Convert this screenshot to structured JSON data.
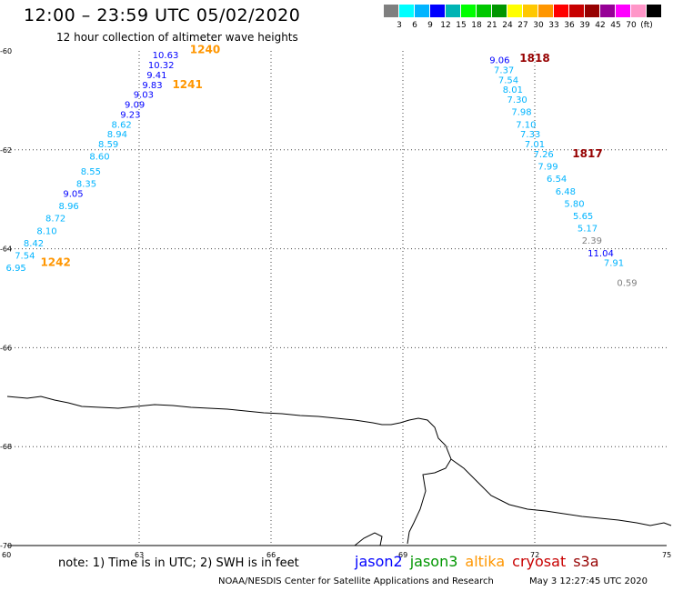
{
  "header": {
    "title": "12:00 – 23:59 UTC 05/02/2020",
    "subtitle": "12 hour collection of altimeter wave heights"
  },
  "scale": {
    "colors": [
      "#7f7f7f",
      "#00ffff",
      "#00b4ff",
      "#0000ff",
      "#00b4b4",
      "#00ff00",
      "#00c800",
      "#009600",
      "#ffff00",
      "#ffc800",
      "#ff9600",
      "#ff0000",
      "#c80000",
      "#960000",
      "#960096",
      "#ff00ff",
      "#ff96c8",
      "#000000"
    ],
    "labels": [
      "3",
      "6",
      "9",
      "12",
      "15",
      "18",
      "21",
      "24",
      "27",
      "30",
      "33",
      "36",
      "39",
      "42",
      "45",
      "70",
      "(ft)"
    ],
    "label_positions": [
      1,
      2,
      3,
      4,
      5,
      6,
      7,
      8,
      9,
      10,
      11,
      12,
      13,
      14,
      15,
      16,
      17
    ]
  },
  "map": {
    "lon_range": [
      60,
      75
    ],
    "lat_range": [
      -60,
      -70
    ],
    "lon_ticks": [
      "60",
      "63",
      "66",
      "69",
      "72",
      "75"
    ],
    "lat_ticks": [
      "-60",
      "-62",
      "-64",
      "-66",
      "-68",
      "-70"
    ]
  },
  "passes": [
    {
      "id": "1240",
      "label_color": "#ff9600",
      "points": [
        {
          "lon": 63.6,
          "lat": -60.15,
          "v": "10.63",
          "c": "#0000ff"
        },
        {
          "lon": 63.5,
          "lat": -60.35,
          "v": "10.32",
          "c": "#0000ff"
        },
        {
          "lon": 63.4,
          "lat": -60.55,
          "v": "9.41",
          "c": "#0000ff"
        },
        {
          "lon": 63.3,
          "lat": -60.75,
          "v": "9.83",
          "c": "#0000ff"
        },
        {
          "lon": 63.1,
          "lat": -60.95,
          "v": "9.03",
          "c": "#0000ff"
        },
        {
          "lon": 62.9,
          "lat": -61.15,
          "v": "9.09",
          "c": "#0000ff"
        },
        {
          "lon": 62.8,
          "lat": -61.35,
          "v": "9.23",
          "c": "#0000ff"
        }
      ]
    },
    {
      "id": "1241",
      "label_color": "#ff9600",
      "points": [
        {
          "lon": 62.6,
          "lat": -61.55,
          "v": "8.62",
          "c": "#00b4ff"
        },
        {
          "lon": 62.5,
          "lat": -61.75,
          "v": "8.94",
          "c": "#00b4ff"
        },
        {
          "lon": 62.3,
          "lat": -61.95,
          "v": "8.59",
          "c": "#00b4ff"
        },
        {
          "lon": 62.1,
          "lat": -62.2,
          "v": "8.60",
          "c": "#00b4ff"
        },
        {
          "lon": 61.9,
          "lat": -62.5,
          "v": "8.55",
          "c": "#00b4ff"
        },
        {
          "lon": 61.8,
          "lat": -62.75,
          "v": "8.35",
          "c": "#00b4ff"
        },
        {
          "lon": 61.5,
          "lat": -62.95,
          "v": "9.05",
          "c": "#0000ff"
        },
        {
          "lon": 61.4,
          "lat": -63.2,
          "v": "8.96",
          "c": "#00b4ff"
        },
        {
          "lon": 61.1,
          "lat": -63.45,
          "v": "8.72",
          "c": "#00b4ff"
        },
        {
          "lon": 60.9,
          "lat": -63.7,
          "v": "8.10",
          "c": "#00b4ff"
        },
        {
          "lon": 60.6,
          "lat": -63.95,
          "v": "8.42",
          "c": "#00b4ff"
        },
        {
          "lon": 60.4,
          "lat": -64.2,
          "v": "7.54",
          "c": "#00b4ff"
        },
        {
          "lon": 60.2,
          "lat": -64.45,
          "v": "6.95",
          "c": "#00b4ff"
        }
      ]
    },
    {
      "id": "1242",
      "label_color": "#ff9600",
      "points": []
    },
    {
      "id": "1818",
      "label_color": "#960000",
      "points": [
        {
          "lon": 71.2,
          "lat": -60.25,
          "v": "9.06",
          "c": "#0000ff"
        },
        {
          "lon": 71.3,
          "lat": -60.45,
          "v": "7.37",
          "c": "#00b4ff"
        },
        {
          "lon": 71.4,
          "lat": -60.65,
          "v": "7.54",
          "c": "#00b4ff"
        },
        {
          "lon": 71.5,
          "lat": -60.85,
          "v": "8.01",
          "c": "#00b4ff"
        },
        {
          "lon": 71.6,
          "lat": -61.05,
          "v": "7.30",
          "c": "#00b4ff"
        },
        {
          "lon": 71.7,
          "lat": -61.3,
          "v": "7.98",
          "c": "#00b4ff"
        },
        {
          "lon": 71.8,
          "lat": -61.55,
          "v": "7.10",
          "c": "#00b4ff"
        },
        {
          "lon": 71.9,
          "lat": -61.75,
          "v": "7.33",
          "c": "#00b4ff"
        },
        {
          "lon": 72.0,
          "lat": -61.95,
          "v": "7.01",
          "c": "#00b4ff"
        }
      ]
    },
    {
      "id": "1817",
      "label_color": "#960000",
      "points": [
        {
          "lon": 72.2,
          "lat": -62.15,
          "v": "7.26",
          "c": "#00b4ff"
        },
        {
          "lon": 72.3,
          "lat": -62.4,
          "v": "7.99",
          "c": "#00b4ff"
        },
        {
          "lon": 72.5,
          "lat": -62.65,
          "v": "6.54",
          "c": "#00b4ff"
        },
        {
          "lon": 72.7,
          "lat": -62.9,
          "v": "6.48",
          "c": "#00b4ff"
        },
        {
          "lon": 72.9,
          "lat": -63.15,
          "v": "5.80",
          "c": "#00b4ff"
        },
        {
          "lon": 73.1,
          "lat": -63.4,
          "v": "5.65",
          "c": "#00b4ff"
        },
        {
          "lon": 73.2,
          "lat": -63.65,
          "v": "5.17",
          "c": "#00b4ff"
        },
        {
          "lon": 73.3,
          "lat": -63.9,
          "v": "2.39",
          "c": "#7f7f7f"
        },
        {
          "lon": 73.5,
          "lat": -64.15,
          "v": "11.04",
          "c": "#0000ff"
        },
        {
          "lon": 73.8,
          "lat": -64.35,
          "v": "7.91",
          "c": "#00b4ff"
        },
        {
          "lon": 74.1,
          "lat": -64.75,
          "v": "0.59",
          "c": "#7f7f7f"
        }
      ]
    }
  ],
  "pass_labels": [
    {
      "id": "1240",
      "lon": 64.5,
      "lat": -60.05,
      "c": "#ff9600"
    },
    {
      "id": "1241",
      "lon": 64.1,
      "lat": -60.75,
      "c": "#ff9600"
    },
    {
      "id": "1242",
      "lon": 61.1,
      "lat": -64.35,
      "c": "#ff9600"
    },
    {
      "id": "1818",
      "lon": 72.0,
      "lat": -60.22,
      "c": "#960000"
    },
    {
      "id": "1817",
      "lon": 73.2,
      "lat": -62.15,
      "c": "#960000"
    }
  ],
  "footer": {
    "note": "note: 1) Time is in UTC; 2) SWH is in feet",
    "missions": [
      {
        "name": "jason2",
        "color": "#0000ff"
      },
      {
        "name": "jason3",
        "color": "#009600"
      },
      {
        "name": "altika",
        "color": "#ff9600"
      },
      {
        "name": "cryosat",
        "color": "#c80000"
      },
      {
        "name": "s3a",
        "color": "#960000"
      }
    ],
    "credit": "NOAA/NESDIS Center for Satellite Applications and Research",
    "timestamp": "May  3 12:27:45 UTC 2020"
  }
}
